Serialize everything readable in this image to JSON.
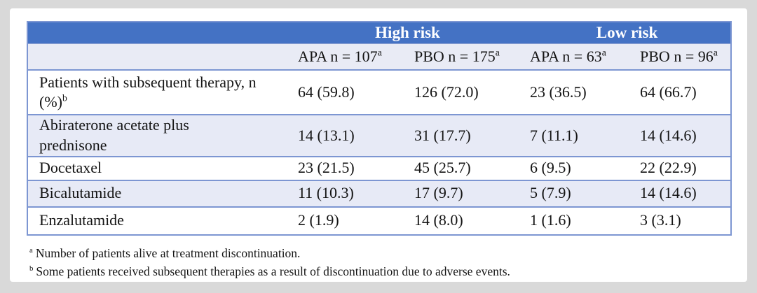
{
  "table": {
    "group_headers": [
      {
        "label": "High risk"
      },
      {
        "label": "Low risk"
      }
    ],
    "column_headers": [
      {
        "label": "APA n = 107",
        "sup": "a"
      },
      {
        "label": "PBO n = 175",
        "sup": "a"
      },
      {
        "label": "APA n = 63",
        "sup": "a"
      },
      {
        "label": "PBO n = 96",
        "sup": "a"
      }
    ],
    "rows": [
      {
        "label": "Patients with subsequent therapy, n (%)",
        "label_sup": "b",
        "values": [
          "64 (59.8)",
          "126 (72.0)",
          "23 (36.5)",
          "64 (66.7)"
        ]
      },
      {
        "label": "Abiraterone acetate plus prednisone",
        "label_sup": "",
        "values": [
          "14 (13.1)",
          "31 (17.7)",
          "7 (11.1)",
          "14 (14.6)"
        ]
      },
      {
        "label": "Docetaxel",
        "label_sup": "",
        "values": [
          "23 (21.5)",
          "45 (25.7)",
          "6 (9.5)",
          "22 (22.9)"
        ]
      },
      {
        "label": "Bicalutamide",
        "label_sup": "",
        "values": [
          "11 (10.3)",
          "17 (9.7)",
          "5 (7.9)",
          "14 (14.6)"
        ]
      },
      {
        "label": "Enzalutamide",
        "label_sup": "",
        "values": [
          "2 (1.9)",
          "14 (8.0)",
          "1 (1.6)",
          "3 (3.1)"
        ]
      }
    ],
    "footnotes": [
      {
        "sup": "a",
        "text": "Number of patients alive at treatment discontinuation."
      },
      {
        "sup": "b",
        "text": "Some patients received subsequent therapies as a result of discontinuation due to adverse events."
      }
    ],
    "colors": {
      "page_bg": "#d9d9d9",
      "card_bg": "#ffffff",
      "header_bg": "#4472c4",
      "header_text": "#ffffff",
      "subheader_bg": "#e9ebf5",
      "row_alt_bg": "#e7eaf6",
      "row_bg": "#ffffff",
      "border": "#7d96d2",
      "text": "#141414"
    }
  }
}
